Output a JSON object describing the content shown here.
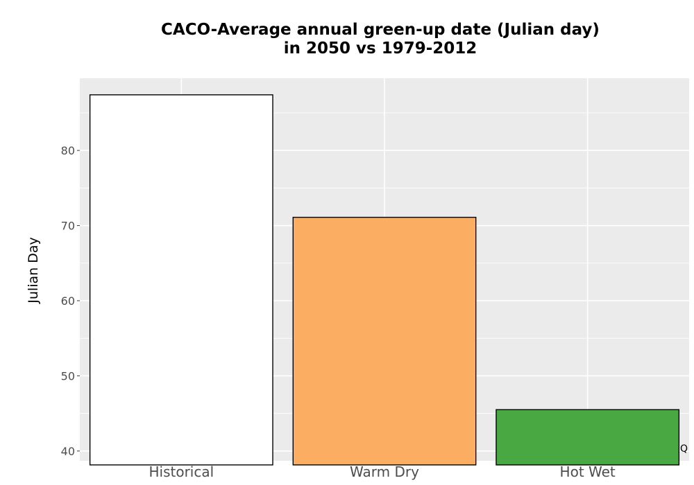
{
  "chart_data": {
    "type": "bar",
    "title_lines": [
      "CACO-Average annual green-up date (Julian day)",
      "in 2050 vs 1979-2012"
    ],
    "ylabel": "Julian Day",
    "xlabel": "",
    "categories": [
      "Historical",
      "Warm Dry",
      "Hot Wet"
    ],
    "values": [
      87.4,
      71.1,
      45.5
    ],
    "colors": [
      "#ffffff",
      "#fbad62",
      "#4aa843"
    ],
    "ylim": [
      38.7,
      89.6
    ],
    "yticks": [
      40,
      50,
      60,
      70,
      80
    ],
    "grid": true,
    "panel_background": "#ebebeb",
    "gridline_color": "#ffffff",
    "bar_outline": "#000000"
  },
  "annotations": {
    "corner_mark": "Q"
  }
}
